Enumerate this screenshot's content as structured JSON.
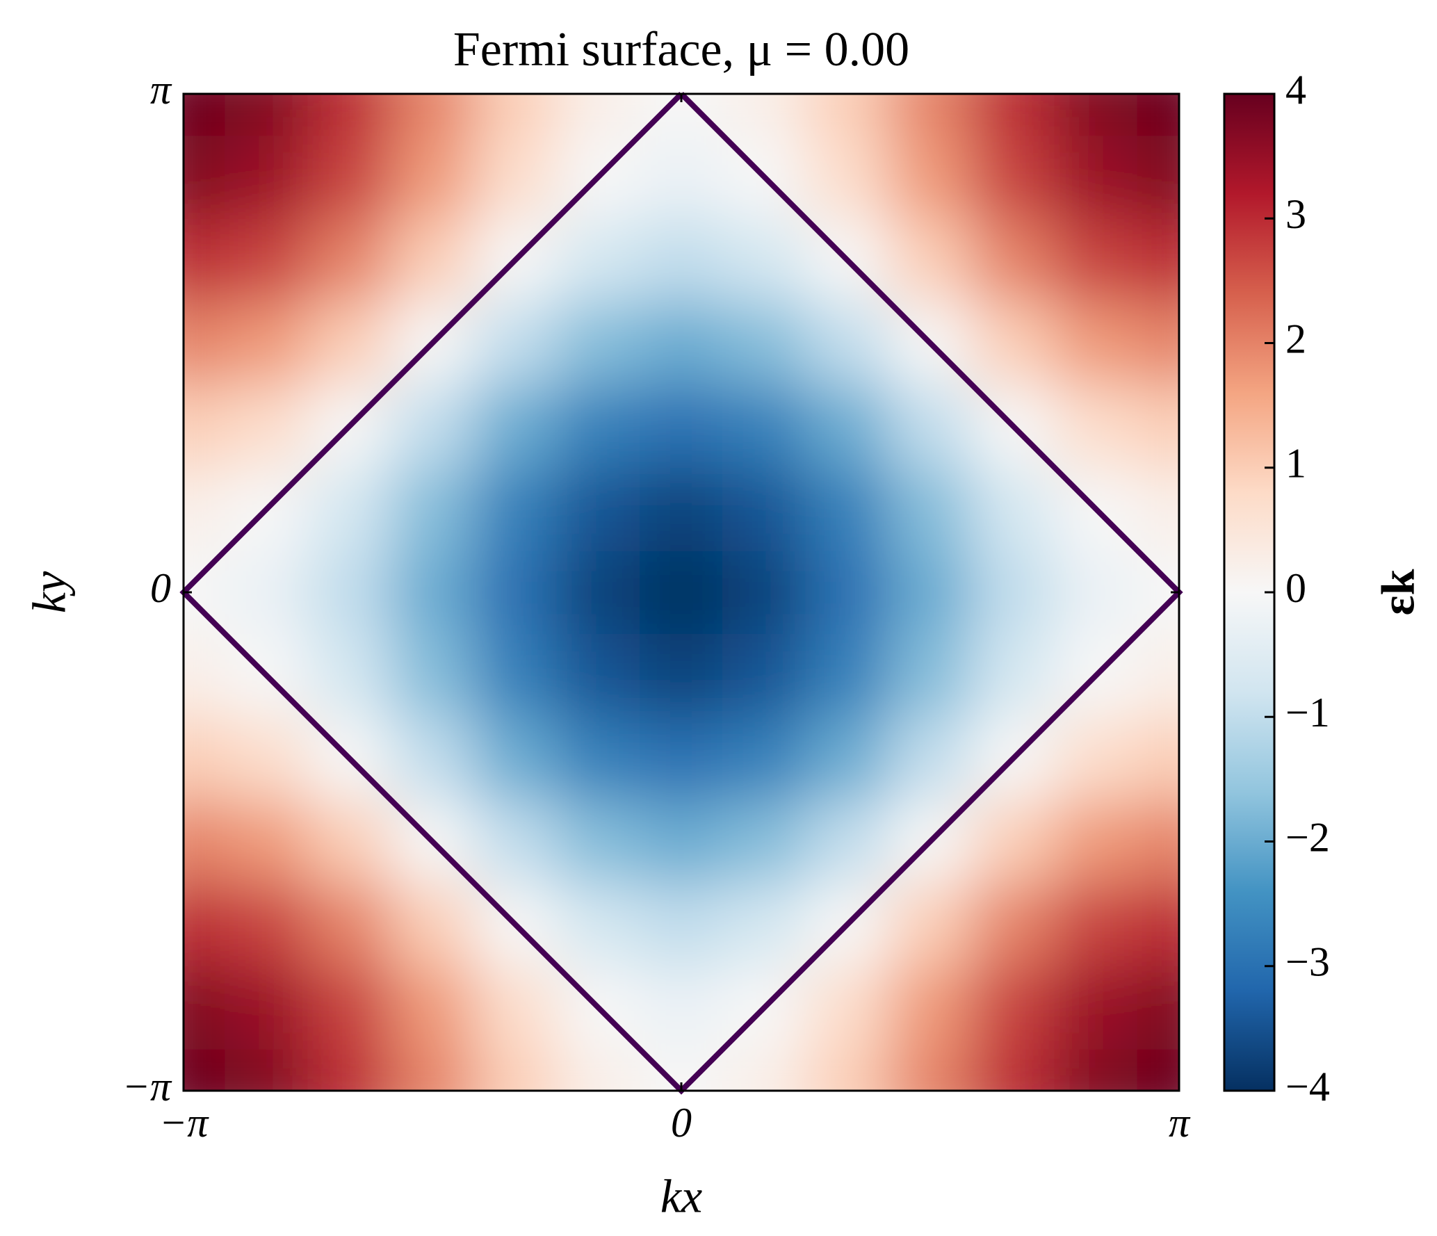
{
  "chart_data": {
    "type": "heatmap",
    "title": "Fermi surface, μ = 0.00",
    "xlabel": "kx",
    "ylabel": "ky",
    "x": [
      -3.1416,
      -2.618,
      -2.0944,
      -1.5708,
      -1.0472,
      -0.5236,
      0,
      0.5236,
      1.0472,
      1.5708,
      2.0944,
      2.618,
      3.1416
    ],
    "y": [
      -3.1416,
      -2.618,
      -2.0944,
      -1.5708,
      -1.0472,
      -0.5236,
      0,
      0.5236,
      1.0472,
      1.5708,
      2.0944,
      2.618,
      3.1416
    ],
    "z": [
      [
        4,
        3.73,
        3,
        2,
        1,
        0.27,
        0,
        0.27,
        1,
        2,
        3,
        3.73,
        4
      ],
      [
        3.73,
        3.46,
        2.73,
        1.73,
        0.73,
        0,
        -0.27,
        0,
        0.73,
        1.73,
        2.73,
        3.46,
        3.73
      ],
      [
        3,
        2.73,
        2,
        1,
        0,
        -0.73,
        -1,
        -0.73,
        0,
        1,
        2,
        2.73,
        3
      ],
      [
        2,
        1.73,
        1,
        0,
        -1,
        -1.73,
        -2,
        -1.73,
        -1,
        0,
        1,
        1.73,
        2
      ],
      [
        1,
        0.73,
        0,
        -1,
        -2,
        -2.73,
        -3,
        -2.73,
        -2,
        -1,
        0,
        0.73,
        1
      ],
      [
        0.27,
        0,
        -0.73,
        -1.73,
        -2.73,
        -3.46,
        -3.73,
        -3.46,
        -2.73,
        -1.73,
        -0.73,
        0,
        0.27
      ],
      [
        0,
        -0.27,
        -1,
        -2,
        -3,
        -3.73,
        -4,
        -3.73,
        -3,
        -2,
        -1,
        -0.27,
        0
      ],
      [
        0.27,
        0,
        -0.73,
        -1.73,
        -2.73,
        -3.46,
        -3.73,
        -3.46,
        -2.73,
        -1.73,
        -0.73,
        0,
        0.27
      ],
      [
        1,
        0.73,
        0,
        -1,
        -2,
        -2.73,
        -3,
        -2.73,
        -2,
        -1,
        0,
        0.73,
        1
      ],
      [
        2,
        1.73,
        1,
        0,
        -1,
        -1.73,
        -2,
        -1.73,
        -1,
        0,
        1,
        1.73,
        2
      ],
      [
        3,
        2.73,
        2,
        1,
        0,
        -0.73,
        -1,
        -0.73,
        0,
        1,
        2,
        2.73,
        3
      ],
      [
        3.73,
        3.46,
        2.73,
        1.73,
        0.73,
        0,
        -0.27,
        0,
        0.73,
        1.73,
        2.73,
        3.46,
        3.73
      ],
      [
        4,
        3.73,
        3,
        2,
        1,
        0.27,
        0,
        0.27,
        1,
        2,
        3,
        3.73,
        4
      ]
    ],
    "xlim": [
      -3.1416,
      3.1416
    ],
    "ylim": [
      -3.1416,
      3.1416
    ],
    "xticks": [
      {
        "value": -3.1416,
        "label": "−π"
      },
      0,
      {
        "value": 3.1416,
        "label": "π"
      }
    ],
    "yticks": [
      {
        "value": -3.1416,
        "label": "−π"
      },
      0,
      {
        "value": 3.1416,
        "label": "π"
      }
    ],
    "contour": {
      "color": "#440154",
      "x": [
        0,
        3.1416,
        0,
        -3.1416,
        0
      ],
      "y": [
        3.1416,
        0,
        -3.1416,
        0,
        3.1416
      ]
    },
    "colormap": [
      "#053061",
      "#2166ac",
      "#4393c3",
      "#92c5de",
      "#d1e5f0",
      "#f7f7f7",
      "#fddbc7",
      "#f4a582",
      "#d6604d",
      "#b2182b",
      "#67001f"
    ],
    "colorbar": {
      "label": "εk",
      "lim": [
        -4,
        4
      ],
      "ticks": [
        {
          "value": -4,
          "label": "−4"
        },
        {
          "value": -3,
          "label": "−3"
        },
        {
          "value": -2,
          "label": "−2"
        },
        {
          "value": -1,
          "label": "−1"
        },
        0,
        1,
        2,
        3,
        4
      ]
    }
  }
}
